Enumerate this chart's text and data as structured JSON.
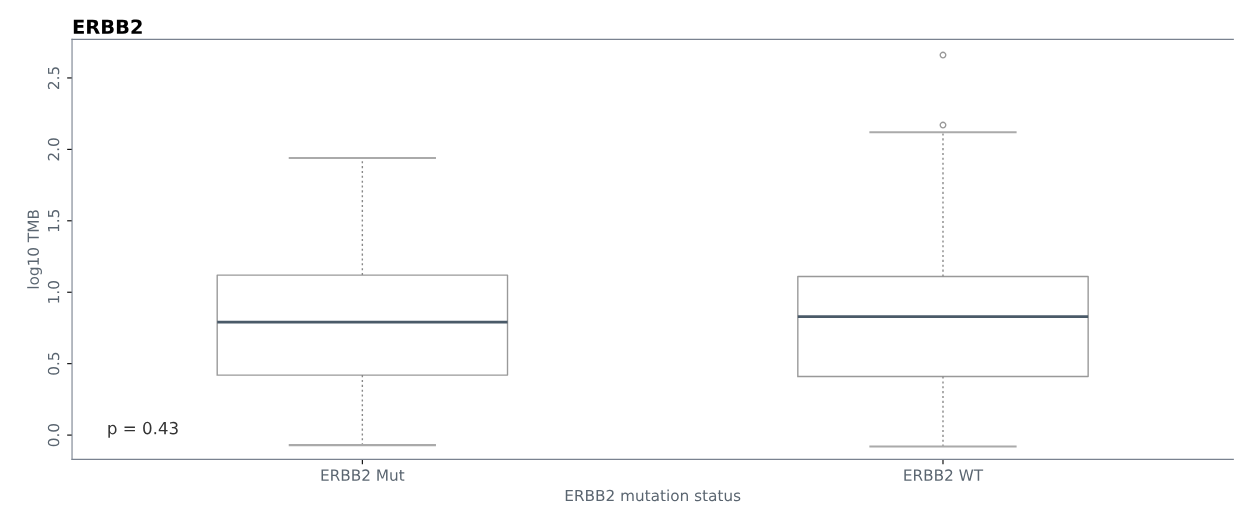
{
  "chart_data": {
    "type": "box",
    "title": "ERBB2",
    "xlabel": "ERBB2 mutation status",
    "ylabel": "log10 TMB",
    "categories": [
      "ERBB2 Mut",
      "ERBB2 WT"
    ],
    "boxes": [
      {
        "low": -0.07,
        "q1": 0.42,
        "median": 0.79,
        "q3": 1.12,
        "high": 1.94
      },
      {
        "low": -0.08,
        "q1": 0.41,
        "median": 0.83,
        "q3": 1.11,
        "high": 2.12,
        "outliers": [
          2.17,
          2.66
        ]
      }
    ],
    "ylim": [
      -0.17,
      2.77
    ],
    "yticks": [
      {
        "value": 0,
        "label": "0.0"
      },
      {
        "value": 0.5,
        "label": "0.5"
      },
      {
        "value": 1,
        "label": "1.0"
      },
      {
        "value": 1.5,
        "label": "1.5"
      },
      {
        "value": 2,
        "label": "2.0"
      },
      {
        "value": 2.5,
        "label": "2.5"
      }
    ],
    "annotations": [
      "p = 0.43"
    ],
    "grid": false
  }
}
